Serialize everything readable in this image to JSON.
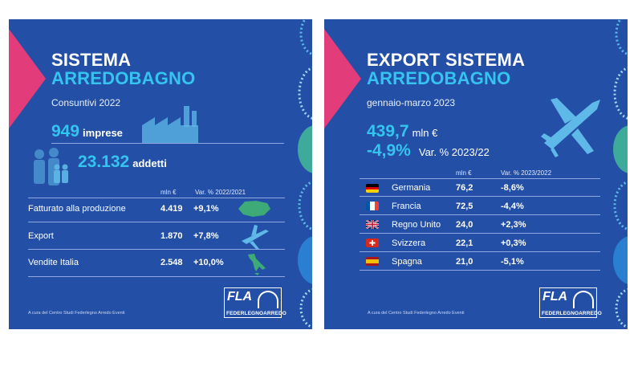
{
  "panel1": {
    "title_line1": "SISTEMA",
    "title_line2": "ARREDOBAGNO",
    "subtitle": "Consuntivi 2022",
    "imprese_value": "949",
    "imprese_label": "imprese",
    "addetti_value": "23.132",
    "addetti_label": "addetti",
    "col_unit": "mln €",
    "col_var": "Var. % 2022/2021",
    "rows": [
      {
        "label": "Fatturato alla produzione",
        "value": "4.419",
        "var": "+9,1%",
        "icon": "world-map-icon"
      },
      {
        "label": "Export",
        "value": "1.870",
        "var": "+7,8%",
        "icon": "airplane-icon"
      },
      {
        "label": "Vendite Italia",
        "value": "2.548",
        "var": "+10,0%",
        "icon": "italy-map-icon"
      }
    ],
    "footer": "A cura del Centro Studi Federlegno Arredo Eventi",
    "logo_text": "FLA",
    "logo_sub": "FEDERLEGNOARREDO"
  },
  "panel2": {
    "title_line1": "EXPORT SISTEMA",
    "title_line2": "ARREDOBAGNO",
    "subtitle": "gennaio-marzo 2023",
    "total_value": "439,7",
    "total_unit": "mln €",
    "var_value": "-4,9%",
    "var_label": "Var. % 2023/22",
    "col_unit": "mln €",
    "col_var": "Var. % 2023/2022",
    "rows": [
      {
        "country": "Germania",
        "value": "76,2",
        "var": "-8,6%",
        "flag": "germany-flag"
      },
      {
        "country": "Francia",
        "value": "72,5",
        "var": "-4,4%",
        "flag": "france-flag"
      },
      {
        "country": "Regno Unito",
        "value": "24,0",
        "var": "+2,3%",
        "flag": "uk-flag"
      },
      {
        "country": "Svizzera",
        "value": "22,1",
        "var": "+0,3%",
        "flag": "switzerland-flag"
      },
      {
        "country": "Spagna",
        "value": "21,0",
        "var": "-5,1%",
        "flag": "spain-flag"
      }
    ],
    "footer": "A cura del Centro Studi Federlegno Arredo Eventi",
    "logo_text": "FLA",
    "logo_sub": "FEDERLEGNOARREDO"
  },
  "colors": {
    "background": "#2350a6",
    "accent_cyan": "#35c4f0",
    "accent_pink": "#e23d7a",
    "icon_green": "#3daa78",
    "icon_light_blue": "#5fb9e8"
  }
}
